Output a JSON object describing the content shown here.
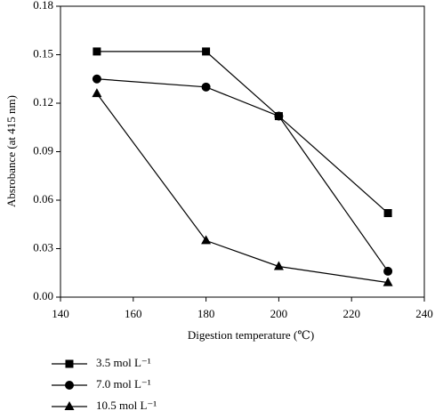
{
  "chart_data": {
    "type": "line",
    "x_label": "Digestion temperature (℃)",
    "y_label": "Absrobance (at 415 nm)",
    "x": [
      150,
      180,
      200,
      230
    ],
    "series": [
      {
        "name": "3.5 mol L⁻¹",
        "color": "#000000",
        "marker": "square",
        "values": [
          0.152,
          0.152,
          0.112,
          0.052
        ]
      },
      {
        "name": "7.0 mol L⁻¹",
        "color": "#000000",
        "marker": "circle",
        "values": [
          0.135,
          0.13,
          0.112,
          0.016
        ]
      },
      {
        "name": "10.5 mol L⁻¹",
        "color": "#000000",
        "marker": "triangle",
        "values": [
          0.126,
          0.035,
          0.019,
          0.009
        ]
      }
    ],
    "xlim": [
      140,
      240
    ],
    "xticks": [
      140,
      160,
      180,
      200,
      220,
      240
    ],
    "ylim": [
      0,
      0.18
    ],
    "yticks": [
      {
        "value": 0,
        "label": "0.00"
      },
      0.03,
      0.06,
      0.09,
      0.12,
      0.15,
      0.18
    ]
  }
}
